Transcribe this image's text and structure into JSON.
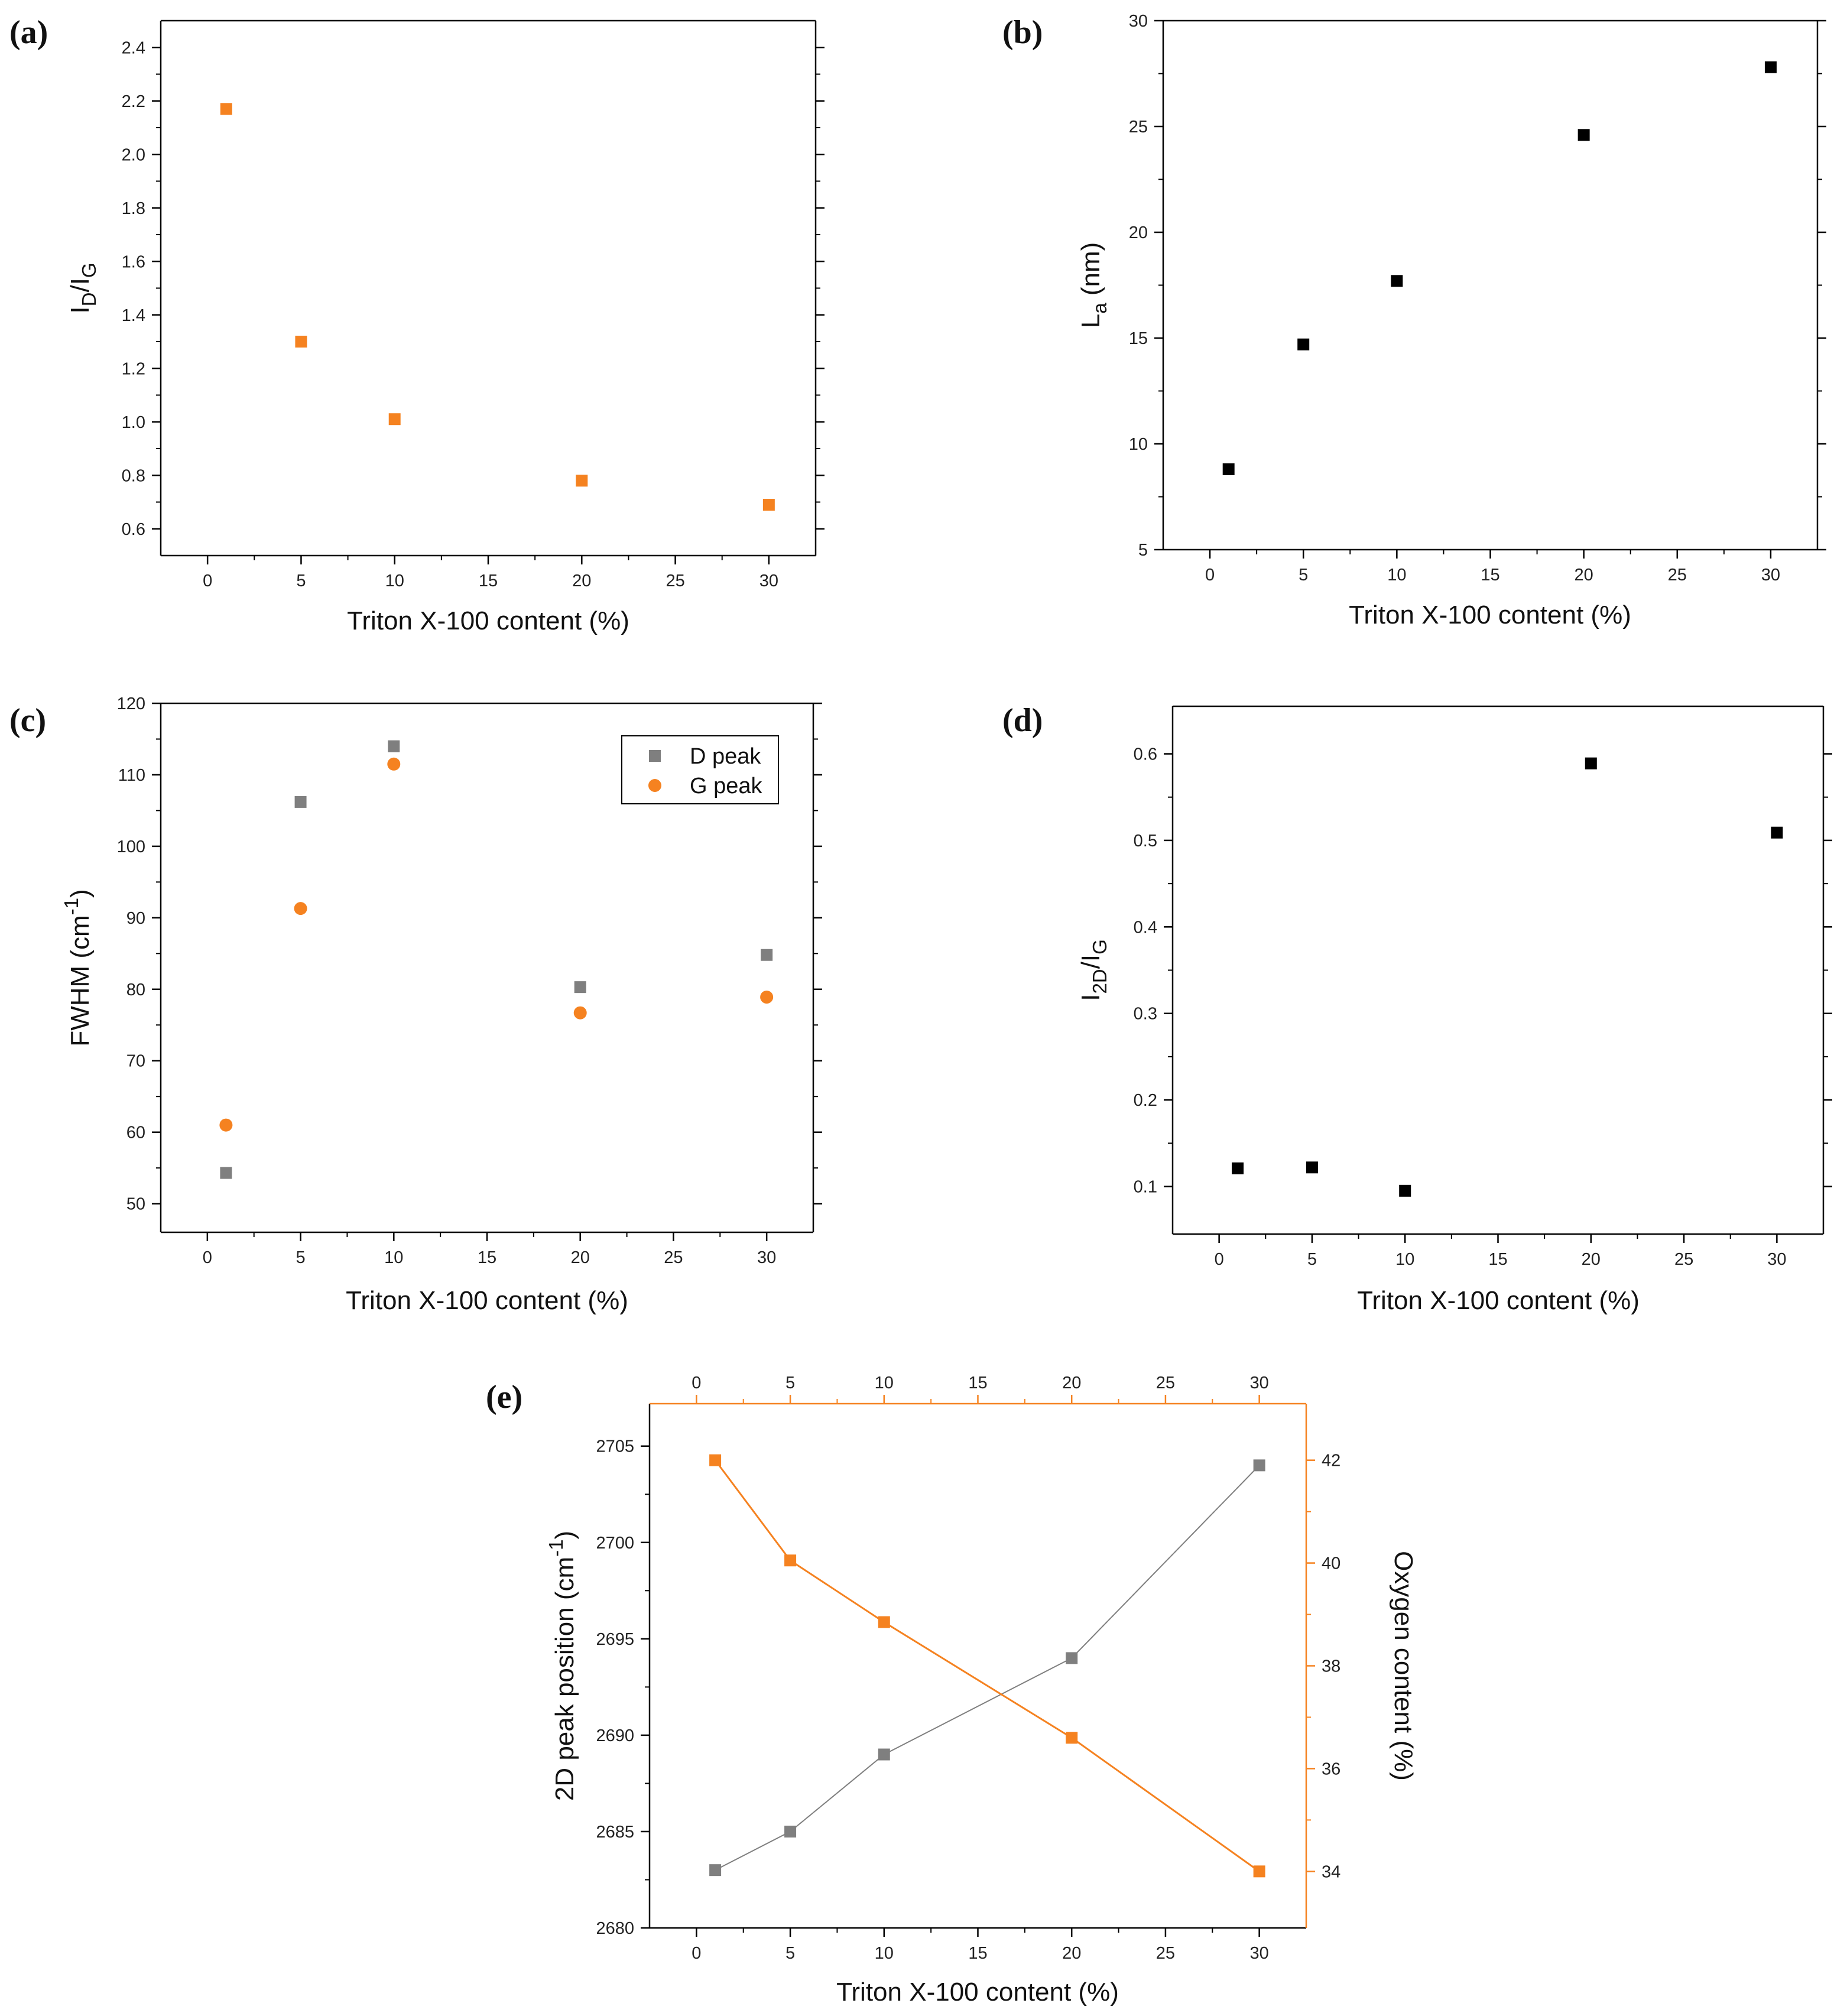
{
  "colors": {
    "orange": "#F58220",
    "gray": "#7F7F7F",
    "black": "#000000",
    "axis": "#000000"
  },
  "chart_data": [
    {
      "id": "a",
      "panel_label": "(a)",
      "type": "scatter",
      "xlabel": "Triton X-100  content (%)",
      "ylabel": {
        "base": "I",
        "sub1": "D",
        "mid": "/I",
        "sub2": "G"
      },
      "xlim": [
        -2.5,
        32.5
      ],
      "ylim": [
        0.5,
        2.5
      ],
      "xticks": [
        0,
        5,
        10,
        15,
        20,
        25,
        30
      ],
      "xtick_labels": [
        "0",
        "5",
        "10",
        "15",
        "20",
        "25",
        "30"
      ],
      "yticks": [
        0.6,
        0.8,
        1.0,
        1.2,
        1.4,
        1.6,
        1.8,
        2.0,
        2.2,
        2.4
      ],
      "ytick_labels": [
        "0.6",
        "0.8",
        "1.0",
        "1.2",
        "1.4",
        "1.6",
        "1.8",
        "2.0",
        "2.2",
        "2.4"
      ],
      "series": [
        {
          "name": "I_D/I_G",
          "marker": "square",
          "color": "#F58220",
          "x": [
            1,
            5,
            10,
            20,
            30
          ],
          "y": [
            2.17,
            1.3,
            1.01,
            0.78,
            0.69
          ]
        }
      ]
    },
    {
      "id": "b",
      "panel_label": "(b)",
      "type": "scatter",
      "xlabel": "Triton X-100  content (%)",
      "ylabel": {
        "base": "L",
        "sub1": "a",
        "rest": " (nm)"
      },
      "xlim": [
        -2.5,
        32.5
      ],
      "ylim": [
        5,
        30
      ],
      "xticks": [
        0,
        5,
        10,
        15,
        20,
        25,
        30
      ],
      "xtick_labels": [
        "0",
        "5",
        "10",
        "15",
        "20",
        "25",
        "30"
      ],
      "yticks": [
        5,
        10,
        15,
        20,
        25,
        30
      ],
      "ytick_labels": [
        "5",
        "10",
        "15",
        "20",
        "25",
        "30"
      ],
      "series": [
        {
          "name": "La",
          "marker": "square",
          "color": "#000000",
          "x": [
            1,
            5,
            10,
            20,
            30
          ],
          "y": [
            8.8,
            14.7,
            17.7,
            24.6,
            27.8
          ]
        }
      ]
    },
    {
      "id": "c",
      "panel_label": "(c)",
      "type": "scatter",
      "xlabel": "Triton X-100  content (%)",
      "ylabel": {
        "base": "FWHM (cm",
        "sup": "-1",
        "rest": ")"
      },
      "xlim": [
        -2.5,
        32.5
      ],
      "ylim": [
        46,
        120
      ],
      "xticks": [
        0,
        5,
        10,
        15,
        20,
        25,
        30
      ],
      "xtick_labels": [
        "0",
        "5",
        "10",
        "15",
        "20",
        "25",
        "30"
      ],
      "yticks": [
        50,
        60,
        70,
        80,
        90,
        100,
        110,
        120
      ],
      "ytick_labels": [
        "50",
        "60",
        "70",
        "80",
        "90",
        "100",
        "110",
        "120"
      ],
      "legend": {
        "position": "top-right",
        "entries": [
          "D peak",
          "G peak"
        ]
      },
      "series": [
        {
          "name": "D peak",
          "marker": "square",
          "color": "#7F7F7F",
          "x": [
            1,
            5,
            10,
            20,
            30
          ],
          "y": [
            54.3,
            106.2,
            114.0,
            80.3,
            84.8
          ]
        },
        {
          "name": "G peak",
          "marker": "circle",
          "color": "#F58220",
          "x": [
            1,
            5,
            10,
            20,
            30
          ],
          "y": [
            61.0,
            91.3,
            111.5,
            76.7,
            78.9
          ]
        }
      ]
    },
    {
      "id": "d",
      "panel_label": "(d)",
      "type": "scatter",
      "xlabel": "Triton X-100  content (%)",
      "ylabel": {
        "base": "I",
        "sub1": "2D",
        "mid": "/I",
        "sub2": "G"
      },
      "xlim": [
        -2.5,
        32.5
      ],
      "ylim": [
        0.045,
        0.655
      ],
      "xticks": [
        0,
        5,
        10,
        15,
        20,
        25,
        30
      ],
      "xtick_labels": [
        "0",
        "5",
        "10",
        "15",
        "20",
        "25",
        "30"
      ],
      "yticks": [
        0.1,
        0.2,
        0.3,
        0.4,
        0.5,
        0.6
      ],
      "ytick_labels": [
        "0.1",
        "0.2",
        "0.3",
        "0.4",
        "0.5",
        "0.6"
      ],
      "series": [
        {
          "name": "I_2D/I_G",
          "marker": "square",
          "color": "#000000",
          "x": [
            1,
            5,
            10,
            20,
            30
          ],
          "y": [
            0.121,
            0.122,
            0.095,
            0.589,
            0.509
          ]
        }
      ]
    },
    {
      "id": "e",
      "panel_label": "(e)",
      "type": "line",
      "xlabel": "Triton X-100  content (%)",
      "ylabel": {
        "base": "2D peak position (cm",
        "sup": "-1",
        "rest": ")"
      },
      "ylabel_right": "Oxygen content (%)",
      "xlim": [
        -2.5,
        32.5
      ],
      "ylim": [
        2680,
        2707.2
      ],
      "ylim_right": [
        32.9,
        43.1
      ],
      "xticks": [
        0,
        5,
        10,
        15,
        20,
        25,
        30
      ],
      "xtick_labels": [
        "0",
        "5",
        "10",
        "15",
        "20",
        "25",
        "30"
      ],
      "top_xtick_labels": [
        "0",
        "5",
        "10",
        "15",
        "20",
        "25",
        "30"
      ],
      "yticks": [
        2680,
        2685,
        2690,
        2695,
        2700,
        2705
      ],
      "ytick_labels": [
        "2680",
        "2685",
        "2690",
        "2695",
        "2700",
        "2705"
      ],
      "yticks_right": [
        34,
        36,
        38,
        40,
        42
      ],
      "ytick_labels_right": [
        "34",
        "36",
        "38",
        "40",
        "42"
      ],
      "series": [
        {
          "name": "2D peak position",
          "axis": "left",
          "marker": "square",
          "color": "#7F7F7F",
          "x": [
            1,
            5,
            10,
            20,
            30
          ],
          "y": [
            2683,
            2685,
            2689,
            2694,
            2704
          ]
        },
        {
          "name": "Oxygen content",
          "axis": "right",
          "marker": "square",
          "color": "#F58220",
          "x": [
            1,
            5,
            10,
            20,
            30
          ],
          "y": [
            42.0,
            40.05,
            38.85,
            36.6,
            34.0
          ]
        }
      ]
    }
  ]
}
